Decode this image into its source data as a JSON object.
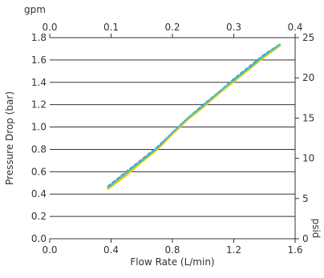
{
  "chart_data": {
    "type": "line",
    "xlabel": "Flow Rate (L/min)",
    "ylabel": "Pressure Drop (bar)",
    "xlim": [
      0.0,
      1.6
    ],
    "ylim": [
      0.0,
      1.8
    ],
    "x_ticks": [
      "0.0",
      "0.4",
      "0.8",
      "1.2",
      "1.6"
    ],
    "y_ticks": [
      "0.0",
      "0.2",
      "0.4",
      "0.6",
      "0.8",
      "1.0",
      "1.2",
      "1.4",
      "1.6",
      "1.8"
    ],
    "secondary_x": {
      "label": "gpm",
      "lim": [
        0.0,
        0.4
      ],
      "ticks": [
        "0.0",
        "0.1",
        "0.2",
        "0.3",
        "0.4"
      ]
    },
    "secondary_y": {
      "label": "psid",
      "lim": [
        0,
        25
      ],
      "ticks": [
        "0",
        "5",
        "10",
        "15",
        "20",
        "25"
      ]
    },
    "grid": "horizontal",
    "series": [
      {
        "color": "#f5c518",
        "dash": "solid",
        "x": [
          0.38,
          0.5,
          0.6,
          0.7,
          0.8,
          0.9,
          1.0,
          1.1,
          1.2,
          1.3,
          1.4,
          1.5
        ],
        "y": [
          0.45,
          0.57,
          0.69,
          0.8,
          0.94,
          1.07,
          1.18,
          1.3,
          1.41,
          1.52,
          1.63,
          1.73
        ]
      },
      {
        "color": "#3a8fd9",
        "dash": "dashed",
        "x": [
          0.38,
          0.5,
          0.6,
          0.7,
          0.8,
          0.9,
          1.0,
          1.1,
          1.2,
          1.3,
          1.4,
          1.5
        ],
        "y": [
          0.47,
          0.6,
          0.71,
          0.82,
          0.95,
          1.08,
          1.2,
          1.31,
          1.43,
          1.54,
          1.65,
          1.74
        ]
      },
      {
        "color": "#3fc4b4",
        "dash": "solid",
        "x": [
          0.38,
          0.5,
          0.6,
          0.7,
          0.8,
          0.9,
          1.0,
          1.1,
          1.2,
          1.3,
          1.4,
          1.5
        ],
        "y": [
          0.46,
          0.59,
          0.7,
          0.81,
          0.95,
          1.08,
          1.19,
          1.31,
          1.42,
          1.53,
          1.64,
          1.74
        ]
      }
    ]
  }
}
